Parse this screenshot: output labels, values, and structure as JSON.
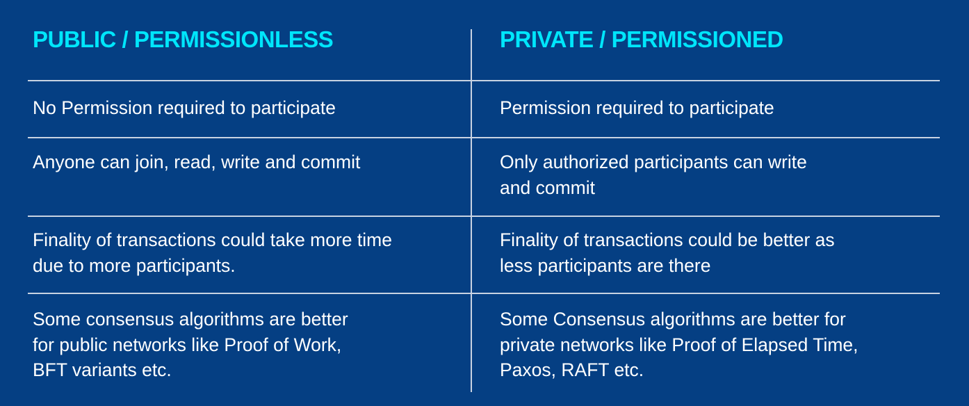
{
  "headers": {
    "left": "PUBLIC / PERMISSIONLESS",
    "right": "PRIVATE / PERMISSIONED"
  },
  "rows": [
    {
      "left": [
        "No Permission required to participate"
      ],
      "right": [
        "Permission required to participate"
      ]
    },
    {
      "left": [
        "Anyone can join, read, write and commit"
      ],
      "right": [
        "Only authorized participants can write",
        "and commit"
      ]
    },
    {
      "left": [
        "Finality of transactions could take more time",
        "due to more participants."
      ],
      "right": [
        "Finality of transactions could be better as",
        "less participants are there"
      ]
    },
    {
      "left": [
        "Some consensus algorithms are better",
        "for public networks like Proof of Work,",
        "BFT variants etc."
      ],
      "right": [
        "Some Consensus algorithms are better for",
        "private networks like Proof of Elapsed Time,",
        "Paxos, RAFT etc."
      ]
    }
  ],
  "colors": {
    "background": "#053f83",
    "header": "#00e6fb",
    "text": "#ffffff",
    "rule": "#c9d3e2"
  }
}
